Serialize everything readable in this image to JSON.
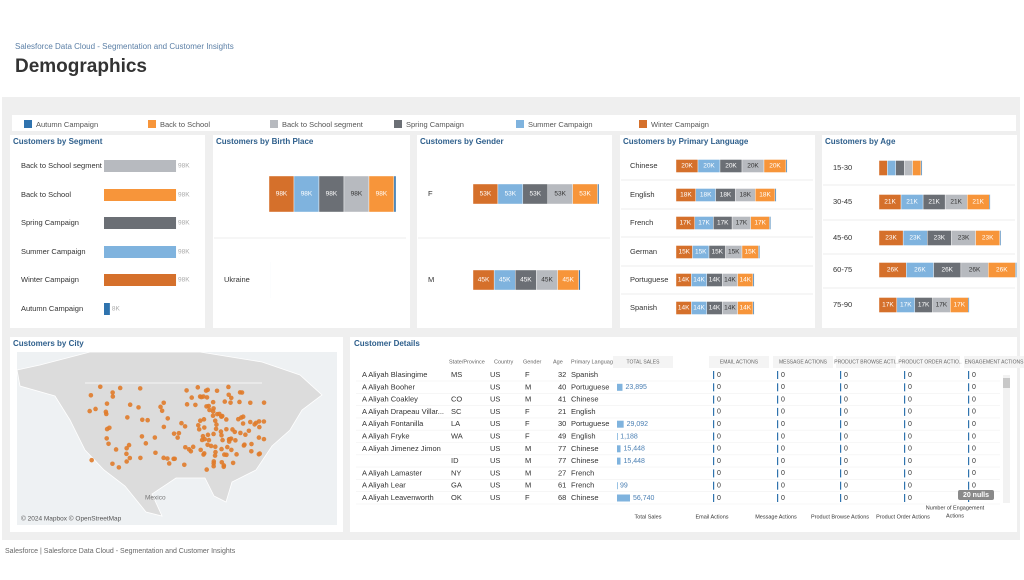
{
  "header": {
    "breadcrumb": "Salesforce Data Cloud - Segmentation and Customer Insights",
    "title": "Demographics"
  },
  "legend": [
    {
      "name": "Autumn Campaign",
      "color": "#2f73ae"
    },
    {
      "name": "Back to School",
      "color": "#f7953a"
    },
    {
      "name": "Back to School segment",
      "color": "#b7babf"
    },
    {
      "name": "Spring Campaign",
      "color": "#6b6f75"
    },
    {
      "name": "Summer Campaign",
      "color": "#7fb3de"
    },
    {
      "name": "Winter Campaign",
      "color": "#d5702b"
    }
  ],
  "segment_chart": {
    "type": "bar",
    "title": "Customers by Segment",
    "categories": [
      "Back to School segment",
      "Back to School",
      "Spring Campaign",
      "Summer Campaign",
      "Winter Campaign",
      "Autumn Campaign"
    ],
    "values": [
      98,
      98,
      98,
      98,
      98,
      8
    ],
    "value_labels": [
      "98K",
      "98K",
      "98K",
      "98K",
      "98K",
      "8K"
    ],
    "colors": [
      "#b7babf",
      "#f7953a",
      "#6b6f75",
      "#7fb3de",
      "#d5702b",
      "#2f73ae"
    ]
  },
  "birthplace_chart": {
    "type": "stacked_bar",
    "title": "Customers by Birth Place",
    "categories": [
      null,
      "Ukraine"
    ],
    "series": [
      {
        "values": [
          8,
          1
        ],
        "value_labels": [
          null,
          null
        ]
      },
      {
        "values": [
          98,
          1
        ],
        "value_labels": [
          "98K",
          null
        ]
      },
      {
        "values": [
          98,
          1
        ],
        "value_labels": [
          "98K",
          null
        ]
      },
      {
        "values": [
          98,
          1
        ],
        "value_labels": [
          "98K",
          null
        ]
      },
      {
        "values": [
          98,
          1
        ],
        "value_labels": [
          "98K",
          null
        ]
      },
      {
        "values": [
          98,
          1
        ],
        "value_labels": [
          "98K",
          null
        ]
      }
    ]
  },
  "gender_chart": {
    "type": "stacked_bar",
    "title": "Customers by Gender",
    "categories": [
      "F",
      "M"
    ],
    "series": [
      {
        "values": [
          3,
          3
        ],
        "value_labels": [
          null,
          null
        ]
      },
      {
        "values": [
          53,
          45
        ],
        "value_labels": [
          "53K",
          "45K"
        ]
      },
      {
        "values": [
          53,
          45
        ],
        "value_labels": [
          "53K",
          "45K"
        ]
      },
      {
        "values": [
          53,
          45
        ],
        "value_labels": [
          "53K",
          "45K"
        ]
      },
      {
        "values": [
          53,
          45
        ],
        "value_labels": [
          "53K",
          "45K"
        ]
      },
      {
        "values": [
          53,
          45
        ],
        "value_labels": [
          "53K",
          "45K"
        ]
      }
    ]
  },
  "language_chart": {
    "type": "stacked_bar",
    "title": "Customers by Primary Language",
    "categories": [
      "Chinese",
      "English",
      "French",
      "German",
      "Portuguese",
      "Spanish"
    ],
    "series": [
      {
        "values": [
          1,
          1,
          1,
          1,
          1,
          1
        ],
        "value_labels": [
          null,
          null,
          null,
          null,
          null,
          null
        ]
      },
      {
        "values": [
          20,
          18,
          17,
          15,
          14,
          14
        ],
        "value_labels": [
          "20K",
          "18K",
          "17K",
          "15K",
          "14K",
          "14K"
        ]
      },
      {
        "values": [
          20,
          18,
          17,
          15,
          14,
          14
        ],
        "value_labels": [
          "20K",
          "18K",
          "17K",
          "15K",
          "14K",
          "14K"
        ]
      },
      {
        "values": [
          20,
          18,
          17,
          15,
          14,
          14
        ],
        "value_labels": [
          "20K",
          "18K",
          "17K",
          "15K",
          "14K",
          "14K"
        ]
      },
      {
        "values": [
          20,
          18,
          17,
          15,
          14,
          14
        ],
        "value_labels": [
          "20K",
          "18K",
          "17K",
          "15K",
          "14K",
          "14K"
        ]
      },
      {
        "values": [
          20,
          18,
          17,
          15,
          14,
          14
        ],
        "value_labels": [
          "20K",
          "18K",
          "17K",
          "15K",
          "14K",
          "14K"
        ]
      }
    ]
  },
  "age_chart": {
    "type": "stacked_bar",
    "title": "Customers by Age",
    "categories": [
      "15-30",
      "30-45",
      "45-60",
      "60-75",
      "75-90"
    ],
    "series": [
      {
        "values": [
          1,
          1,
          1,
          1,
          1
        ],
        "value_labels": [
          null,
          null,
          null,
          null,
          null
        ]
      },
      {
        "values": [
          8,
          21,
          23,
          26,
          17
        ],
        "value_labels": [
          null,
          "21K",
          "23K",
          "26K",
          "17K"
        ]
      },
      {
        "values": [
          8,
          21,
          23,
          26,
          17
        ],
        "value_labels": [
          null,
          "21K",
          "23K",
          "26K",
          "17K"
        ]
      },
      {
        "values": [
          8,
          21,
          23,
          26,
          17
        ],
        "value_labels": [
          null,
          "21K",
          "23K",
          "26K",
          "17K"
        ]
      },
      {
        "values": [
          8,
          21,
          23,
          26,
          17
        ],
        "value_labels": [
          null,
          "21K",
          "23K",
          "26K",
          "17K"
        ]
      },
      {
        "values": [
          8,
          21,
          23,
          26,
          17
        ],
        "value_labels": [
          null,
          "21K",
          "23K",
          "26K",
          "17K"
        ]
      }
    ]
  },
  "map": {
    "title": "Customers by City",
    "attribution": "© 2024 Mapbox © OpenStreetMap",
    "labels": [
      "Mexico"
    ]
  },
  "table": {
    "title": "Customer Details",
    "columns": [
      "State/Province",
      "Country",
      "Gender",
      "Age",
      "Primary Language",
      "TOTAL SALES",
      "EMAIL ACTIONS",
      "MESSAGE ACTIONS",
      "PRODUCT BROWSE ACTI..",
      "PRODUCT ORDER ACTIO..",
      "ENGAGEMENT ACTIONS"
    ],
    "rows": [
      {
        "name": "A Aliyah Blasingime",
        "state": "MS",
        "country": "US",
        "gender": "F",
        "age": 32,
        "language": "Spanish",
        "sales": null,
        "sales_label": null,
        "actions": [
          "0",
          "0",
          "0",
          "0",
          "0"
        ]
      },
      {
        "name": "A Aliyah Booher",
        "state": null,
        "country": "US",
        "gender": "M",
        "age": 40,
        "language": "Portuguese",
        "sales": 23895,
        "sales_label": "23,895",
        "actions": [
          "0",
          "0",
          "0",
          "0",
          "0"
        ]
      },
      {
        "name": "A Aliyah Coakley",
        "state": "CO",
        "country": "US",
        "gender": "M",
        "age": 41,
        "language": "Chinese",
        "sales": null,
        "sales_label": null,
        "actions": [
          "0",
          "0",
          "0",
          "0",
          "0"
        ]
      },
      {
        "name": "A Aliyah Drapeau Villar...",
        "state": "SC",
        "country": "US",
        "gender": "F",
        "age": 21,
        "language": "English",
        "sales": null,
        "sales_label": null,
        "actions": [
          "0",
          "0",
          "0",
          "0",
          "0"
        ]
      },
      {
        "name": "A Aliyah Fontanilla",
        "state": "LA",
        "country": "US",
        "gender": "F",
        "age": 30,
        "language": "Portuguese",
        "sales": 29092,
        "sales_label": "29,092",
        "actions": [
          "0",
          "0",
          "0",
          "0",
          "0"
        ]
      },
      {
        "name": "A Aliyah Fryke",
        "state": "WA",
        "country": "US",
        "gender": "F",
        "age": 49,
        "language": "English",
        "sales": 1188,
        "sales_label": "1,188",
        "actions": [
          "0",
          "0",
          "0",
          "0",
          "0"
        ]
      },
      {
        "name": "A Aliyah Jimenez Jimon",
        "state": null,
        "country": "US",
        "gender": "M",
        "age": 77,
        "language": "Chinese",
        "sales": 15448,
        "sales_label": "15,448",
        "actions": [
          "0",
          "0",
          "0",
          "0",
          "0"
        ]
      },
      {
        "name": null,
        "state": "ID",
        "country": "US",
        "gender": "M",
        "age": 77,
        "language": "Chinese",
        "sales": 15448,
        "sales_label": "15,448",
        "actions": [
          "0",
          "0",
          "0",
          "0",
          "0"
        ]
      },
      {
        "name": "A Aliyah Lamaster",
        "state": "NY",
        "country": "US",
        "gender": "M",
        "age": 27,
        "language": "French",
        "sales": null,
        "sales_label": null,
        "actions": [
          "0",
          "0",
          "0",
          "0",
          "0"
        ]
      },
      {
        "name": "A Aliyah Lear",
        "state": "GA",
        "country": "US",
        "gender": "M",
        "age": 61,
        "language": "French",
        "sales": 99,
        "sales_label": "99",
        "actions": [
          "0",
          "0",
          "0",
          "0",
          "0"
        ]
      },
      {
        "name": "A Aliyah Leavenworth",
        "state": "OK",
        "country": "US",
        "gender": "F",
        "age": 68,
        "language": "Chinese",
        "sales": 56740,
        "sales_label": "56,740",
        "actions": [
          "0",
          "0",
          "0",
          "0",
          "0"
        ]
      }
    ],
    "footer_labels": [
      "Total Sales",
      "Email Actions",
      "Message Actions",
      "Product Browse Actions",
      "Product Order Actions",
      [
        "Number of Engagement",
        "Actions"
      ]
    ],
    "nulls_badge": "20 nulls"
  },
  "footer": "Salesforce | Salesforce Data Cloud - Segmentation and Customer Insights"
}
